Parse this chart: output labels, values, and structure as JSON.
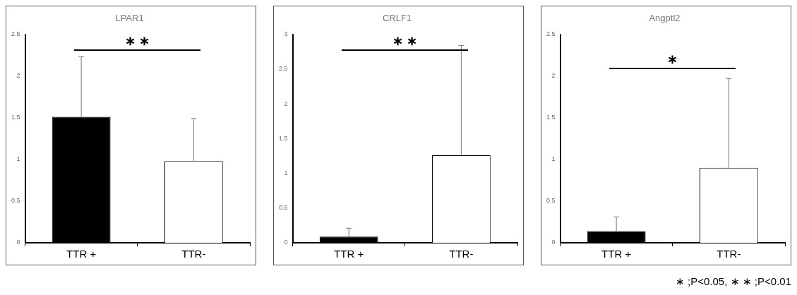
{
  "chart_data": [
    {
      "type": "bar",
      "title": "LPAR1",
      "categories": [
        "TTR +",
        "TTR-"
      ],
      "values": [
        1.51,
        0.98
      ],
      "colors": [
        "#000000",
        "#ffffff"
      ],
      "errors": [
        [
          1.51,
          2.23
        ],
        [
          0.98,
          1.49
        ]
      ],
      "ylim": [
        0,
        2.5
      ],
      "yticks": [
        0,
        0.5,
        1,
        1.5,
        2,
        2.5
      ],
      "annotations": [
        "∗ ∗"
      ]
    },
    {
      "type": "bar",
      "title": "CRLF1",
      "categories": [
        "TTR +",
        "TTR-"
      ],
      "values": [
        0.09,
        1.26
      ],
      "colors": [
        "#000000",
        "#ffffff"
      ],
      "errors": [
        [
          0.09,
          0.21
        ],
        [
          1.26,
          2.84
        ]
      ],
      "ylim": [
        0,
        3
      ],
      "yticks": [
        0,
        0.5,
        1,
        1.5,
        2,
        2.5,
        3
      ],
      "annotations": [
        "∗ ∗"
      ]
    },
    {
      "type": "bar",
      "title": "Angptl2",
      "categories": [
        "TTR +",
        "TTR-"
      ],
      "values": [
        0.14,
        0.9
      ],
      "colors": [
        "#000000",
        "#ffffff"
      ],
      "errors": [
        [
          0.14,
          0.31
        ],
        [
          0.9,
          1.97
        ]
      ],
      "ylim": [
        0,
        2.5
      ],
      "yticks": [
        0,
        0.5,
        1,
        1.5,
        2,
        2.5
      ],
      "annotations": [
        "∗",
        "∗ ;P<0.05, ∗ ∗ ;P<0.01"
      ]
    }
  ]
}
